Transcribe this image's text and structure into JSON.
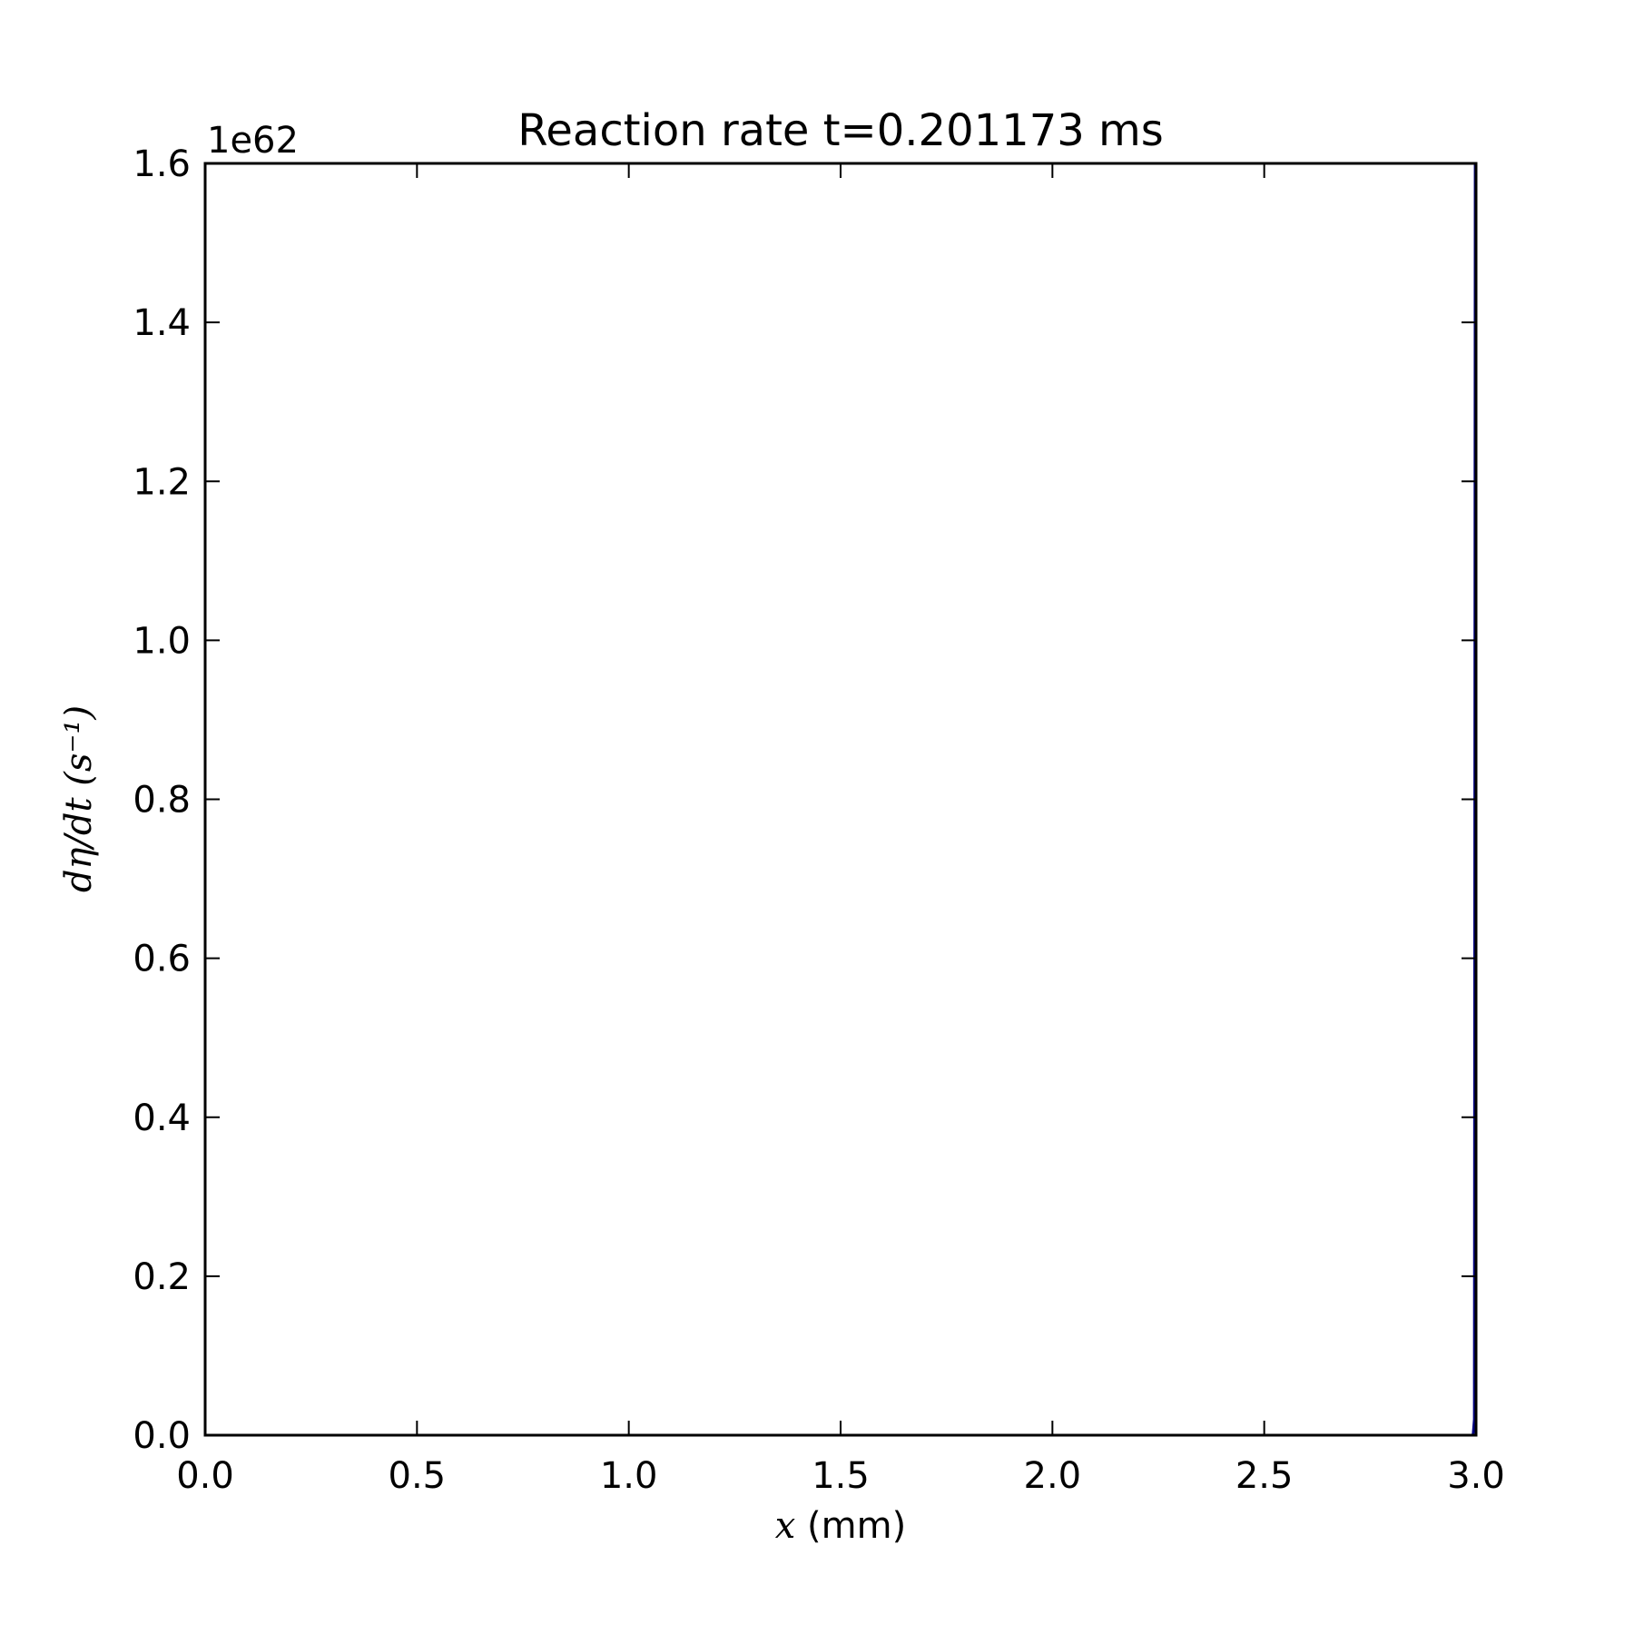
{
  "chart_data": {
    "type": "line",
    "title": "Reaction rate t=0.201173 ms",
    "xlabel": {
      "math": "x",
      "text": " (mm)"
    },
    "ylabel": {
      "math": "dη/dt",
      "text": " (s⁻¹)"
    },
    "y_offset_label": "1e62",
    "xlim": [
      0.0,
      3.0
    ],
    "ylim": [
      0.0,
      1.6
    ],
    "x_ticks": [
      "0.0",
      "0.5",
      "1.0",
      "1.5",
      "2.0",
      "2.5",
      "3.0"
    ],
    "y_ticks": [
      "0.0",
      "0.2",
      "0.4",
      "0.6",
      "0.8",
      "1.0",
      "1.2",
      "1.4",
      "1.6"
    ],
    "grid": false,
    "series": [
      {
        "color": "#000080",
        "x": [
          0.0,
          2.99,
          2.993,
          2.996,
          2.998,
          3.0
        ],
        "y": [
          0.0,
          0.0,
          0.0,
          0.02,
          1.6,
          1.6
        ]
      }
    ]
  }
}
